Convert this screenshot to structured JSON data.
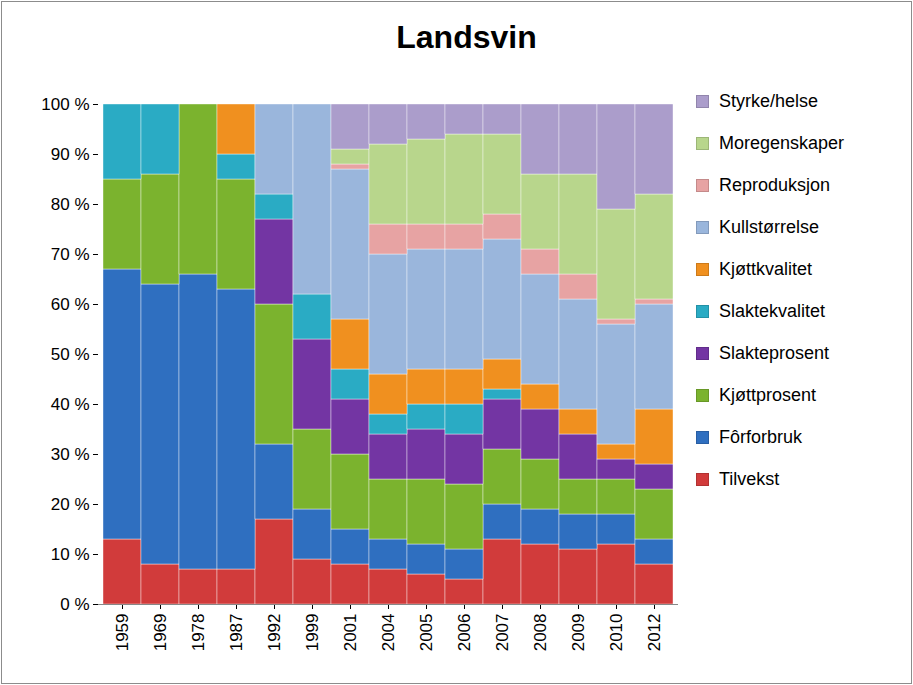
{
  "chart_data": {
    "type": "bar",
    "title": "Landsvin",
    "stacked": true,
    "legend": "right",
    "grid": false,
    "categories": [
      "1959",
      "1969",
      "1978",
      "1987",
      "1992",
      "1999",
      "2001",
      "2004",
      "2005",
      "2006",
      "2007",
      "2008",
      "2009",
      "2010",
      "2012"
    ],
    "ylim": [
      0,
      100
    ],
    "yticks": [
      {
        "value": 0,
        "label": "0 %"
      },
      {
        "value": 10,
        "label": "10 %"
      },
      {
        "value": 20,
        "label": "20 %"
      },
      {
        "value": 30,
        "label": "30 %"
      },
      {
        "value": 40,
        "label": "40 %"
      },
      {
        "value": 50,
        "label": "50 %"
      },
      {
        "value": 60,
        "label": "60 %"
      },
      {
        "value": 70,
        "label": "70 %"
      },
      {
        "value": 80,
        "label": "80 %"
      },
      {
        "value": 90,
        "label": "90 %"
      },
      {
        "value": 100,
        "label": "100 %"
      }
    ],
    "series": [
      {
        "name": "Tilvekst",
        "color": "#d13b3b",
        "values": [
          13,
          8,
          7,
          7,
          17,
          9,
          8,
          7,
          6,
          5,
          13,
          12,
          11,
          12,
          8
        ]
      },
      {
        "name": "Fôrforbruk",
        "color": "#2f6fc0",
        "values": [
          54,
          56,
          59,
          56,
          15,
          10,
          7,
          6,
          6,
          6,
          7,
          7,
          7,
          6,
          5
        ]
      },
      {
        "name": "Kjøttprosent",
        "color": "#7bb32e",
        "values": [
          18,
          22,
          34,
          22,
          28,
          16,
          15,
          12,
          13,
          13,
          11,
          10,
          7,
          7,
          10
        ]
      },
      {
        "name": "Slakteprosent",
        "color": "#7335a3",
        "values": [
          0,
          0,
          0,
          0,
          17,
          18,
          11,
          9,
          10,
          10,
          10,
          10,
          9,
          4,
          5
        ]
      },
      {
        "name": "Slaktekvalitet",
        "color": "#2aabc4",
        "values": [
          15,
          14,
          0,
          5,
          5,
          9,
          6,
          4,
          5,
          6,
          2,
          0,
          0,
          0,
          0
        ]
      },
      {
        "name": "Kjøttkvalitet",
        "color": "#f0901f",
        "values": [
          0,
          0,
          0,
          10,
          0,
          0,
          10,
          8,
          7,
          7,
          6,
          5,
          5,
          3,
          11
        ]
      },
      {
        "name": "Kullstørrelse",
        "color": "#9ab6dc",
        "values": [
          0,
          0,
          0,
          0,
          18,
          38,
          30,
          24,
          24,
          24,
          24,
          22,
          22,
          24,
          21
        ]
      },
      {
        "name": "Reproduksjon",
        "color": "#e7a3a3",
        "values": [
          0,
          0,
          0,
          0,
          0,
          0,
          1,
          6,
          5,
          5,
          5,
          5,
          5,
          1,
          1
        ]
      },
      {
        "name": "Moregenskaper",
        "color": "#b8d68c",
        "values": [
          0,
          0,
          0,
          0,
          0,
          0,
          3,
          16,
          17,
          18,
          16,
          15,
          20,
          22,
          21
        ]
      },
      {
        "name": "Styrke/helse",
        "color": "#ab9dcb",
        "values": [
          0,
          0,
          0,
          0,
          0,
          0,
          9,
          8,
          7,
          6,
          6,
          14,
          14,
          21,
          18
        ]
      }
    ]
  }
}
